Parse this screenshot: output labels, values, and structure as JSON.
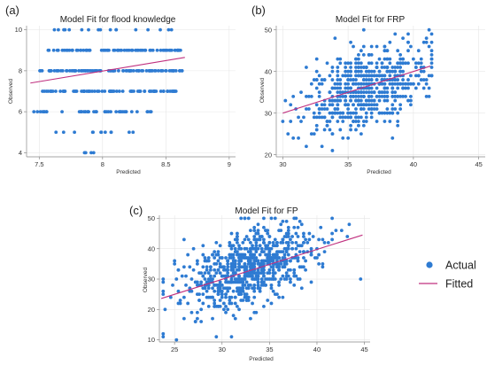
{
  "colors": {
    "points": "#2e7bd2",
    "fit": "#c0307f"
  },
  "legend": {
    "items": [
      {
        "label": "Actual",
        "marker": "dot"
      },
      {
        "label": "Fitted",
        "marker": "line"
      }
    ]
  },
  "chart_data": [
    {
      "panel_label": "(a)",
      "type": "scatter",
      "title": "Model Fit for flood knowledge",
      "xlabel": "Predicted",
      "ylabel": "Observed",
      "xlim": [
        7.4,
        9.05
      ],
      "ylim": [
        3.8,
        10.2
      ],
      "xticks": [
        7.5,
        8,
        8.5,
        9
      ],
      "xtick_labels": [
        "7.5",
        "8",
        "8.5",
        "9"
      ],
      "yticks": [
        4,
        6,
        8,
        10
      ],
      "ytick_labels": [
        "4",
        "6",
        "8",
        "10"
      ],
      "grid": true,
      "discrete_y": true,
      "point_count": 330,
      "x_spread": 0.2,
      "y_bands": [
        {
          "y": 10,
          "x_range": [
            7.58,
            8.55
          ],
          "weight": 0.35
        },
        {
          "y": 9,
          "x_range": [
            7.55,
            8.62
          ],
          "weight": 1.6
        },
        {
          "y": 8,
          "x_range": [
            7.5,
            8.65
          ],
          "weight": 2.0
        },
        {
          "y": 7,
          "x_range": [
            7.52,
            8.58
          ],
          "weight": 1.5
        },
        {
          "y": 6,
          "x_range": [
            7.45,
            8.42
          ],
          "weight": 0.85
        },
        {
          "y": 5,
          "x_range": [
            7.62,
            8.3
          ],
          "weight": 0.25
        },
        {
          "y": 4,
          "x_range": [
            7.84,
            8.02
          ],
          "weight": 0.08
        }
      ],
      "fit_line": {
        "x": [
          7.43,
          8.65
        ],
        "y": [
          7.4,
          8.65
        ]
      }
    },
    {
      "panel_label": "(b)",
      "type": "scatter",
      "title": "Model Fit for FRP",
      "xlabel": "Predicted",
      "ylabel": "Observed",
      "xlim": [
        29.5,
        45.5
      ],
      "ylim": [
        19.5,
        51
      ],
      "xticks": [
        30,
        35,
        40,
        45
      ],
      "xtick_labels": [
        "30",
        "35",
        "40",
        "45"
      ],
      "yticks": [
        20,
        30,
        40,
        50
      ],
      "ytick_labels": [
        "20",
        "30",
        "40",
        "50"
      ],
      "grid": true,
      "discrete_y": true,
      "point_count": 640,
      "x_mean": 36.5,
      "x_sd": 2.3,
      "x_range": [
        30.0,
        41.3
      ],
      "slope": 0.95,
      "intercept": 1.5,
      "noise_sd": 4.6,
      "y_range": [
        20,
        50
      ],
      "fit_line": {
        "x": [
          30.0,
          41.3
        ],
        "y": [
          30.0,
          41.3
        ]
      }
    },
    {
      "panel_label": "(c)",
      "type": "scatter",
      "title": "Model Fit for FP",
      "xlabel": "Predicted",
      "ylabel": "Observed",
      "xlim": [
        23.4,
        45.6
      ],
      "ylim": [
        9.3,
        51
      ],
      "xticks": [
        25,
        30,
        35,
        40,
        45
      ],
      "xtick_labels": [
        "25",
        "30",
        "35",
        "40",
        "45"
      ],
      "yticks": [
        10,
        20,
        30,
        40,
        50
      ],
      "ytick_labels": [
        "10",
        "20",
        "30",
        "40",
        "50"
      ],
      "grid": true,
      "discrete_y": true,
      "point_count": 780,
      "x_mean": 33.0,
      "x_sd": 3.6,
      "x_range": [
        23.8,
        44.6
      ],
      "slope": 1.0,
      "intercept": 0.5,
      "noise_sd": 6.3,
      "y_range": [
        10,
        50
      ],
      "fit_line": {
        "x": [
          23.6,
          44.8
        ],
        "y": [
          23.6,
          44.5
        ]
      }
    }
  ]
}
